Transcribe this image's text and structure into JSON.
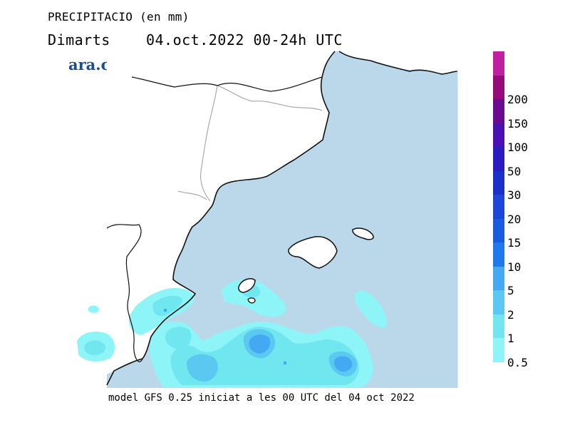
{
  "header": {
    "title": "PRECIPITACIO (en mm)",
    "subtitle": "Dimarts    04.oct.2022 00-24h UTC"
  },
  "brand": {
    "logo_text": "ara.cat"
  },
  "footer": {
    "text": "model GFS 0.25 iniciat a les 00 UTC del 04 oct 2022"
  },
  "colors": {
    "sea": "#bad8ea",
    "land": "#ffffff",
    "coast": "#111111",
    "border": "#aaaaaa"
  },
  "legend": {
    "levels": [
      {
        "label": "0.5",
        "color": "#8df4f7"
      },
      {
        "label": "1",
        "color": "#70e6ef"
      },
      {
        "label": "2",
        "color": "#5ac8f0"
      },
      {
        "label": "5",
        "color": "#45a8f2"
      },
      {
        "label": "10",
        "color": "#1f78ec"
      },
      {
        "label": "15",
        "color": "#1a5ae0"
      },
      {
        "label": "20",
        "color": "#1c46d8"
      },
      {
        "label": "30",
        "color": "#1b30c8"
      },
      {
        "label": "50",
        "color": "#2a1cc0"
      },
      {
        "label": "100",
        "color": "#4a10b4"
      },
      {
        "label": "150",
        "color": "#6a0a90"
      },
      {
        "label": "200",
        "color": "#960a7c"
      },
      {
        "label": "",
        "color": "#c020a0"
      }
    ]
  }
}
